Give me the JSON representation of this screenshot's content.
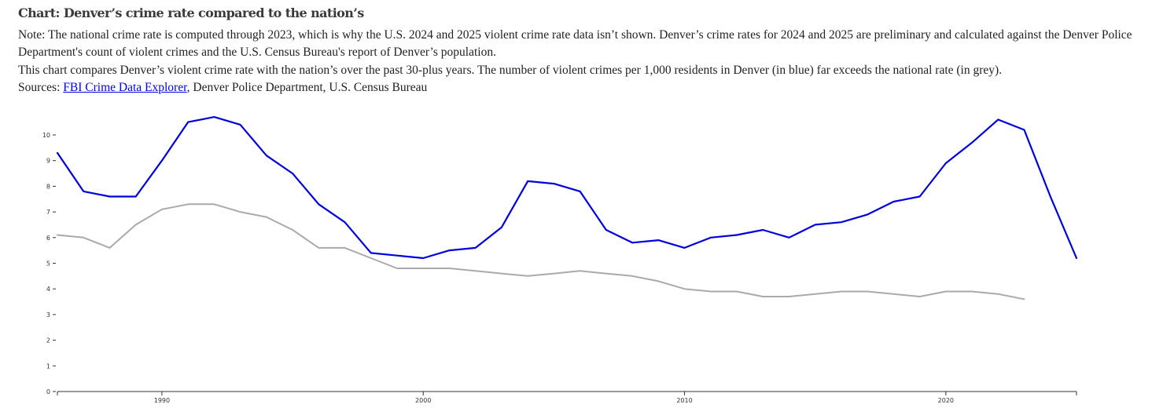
{
  "header": {
    "title": "Chart: Denver’s crime rate compared to the nation’s",
    "note": "Note: The national crime rate is computed through 2023, which is why the U.S. 2024 and 2025 violent crime rate data isn’t shown. Denver’s crime rates for 2024 and 2025 are preliminary and calculated against the Denver Police Department's count of violent crimes and the U.S. Census Bureau's report of Denver’s population.",
    "description": "This chart compares Denver’s violent crime rate with the nation’s over the past 30-plus years. The number of violent crimes per 1,000 residents in Denver (in blue) far exceeds the national rate (in grey).",
    "sources_prefix": "Sources: ",
    "sources_link": "FBI Crime Data Explorer",
    "sources_suffix": ", Denver Police Department, U.S. Census Bureau"
  },
  "chart_data": {
    "type": "line",
    "title": "",
    "xlabel": "",
    "ylabel": "",
    "xlim": [
      1986,
      2025
    ],
    "ylim": [
      0,
      10
    ],
    "x_ticks": [
      1990,
      2000,
      2010,
      2020
    ],
    "y_ticks": [
      0,
      1,
      2,
      3,
      4,
      5,
      6,
      7,
      8,
      9,
      10
    ],
    "grid": false,
    "legend": "none",
    "series": [
      {
        "color": "#0000dd",
        "x": [
          1986,
          1987,
          1988,
          1989,
          1990,
          1991,
          1992,
          1993,
          1994,
          1995,
          1996,
          1997,
          1998,
          1999,
          2000,
          2001,
          2002,
          2003,
          2004,
          2005,
          2006,
          2007,
          2008,
          2009,
          2010,
          2011,
          2012,
          2013,
          2014,
          2015,
          2016,
          2017,
          2018,
          2019,
          2020,
          2021,
          2022,
          2023,
          2024,
          2025
        ],
        "values": [
          9.3,
          7.8,
          7.6,
          7.6,
          9.0,
          10.5,
          10.7,
          10.4,
          9.2,
          8.5,
          7.3,
          6.6,
          5.4,
          5.3,
          5.2,
          5.5,
          5.6,
          6.4,
          8.2,
          8.1,
          7.8,
          6.3,
          5.8,
          5.9,
          5.6,
          6.0,
          6.1,
          6.3,
          6.0,
          6.5,
          6.6,
          6.9,
          7.4,
          7.6,
          8.9,
          9.7,
          10.6,
          10.2,
          7.6,
          5.2
        ]
      },
      {
        "color": "#aaaaaa",
        "x": [
          1986,
          1987,
          1988,
          1989,
          1990,
          1991,
          1992,
          1993,
          1994,
          1995,
          1996,
          1997,
          1998,
          1999,
          2000,
          2001,
          2002,
          2003,
          2004,
          2005,
          2006,
          2007,
          2008,
          2009,
          2010,
          2011,
          2012,
          2013,
          2014,
          2015,
          2016,
          2017,
          2018,
          2019,
          2020,
          2021,
          2022,
          2023
        ],
        "values": [
          6.1,
          6.0,
          5.6,
          6.5,
          7.1,
          7.3,
          7.3,
          7.0,
          6.8,
          6.3,
          5.6,
          5.6,
          5.2,
          4.8,
          4.8,
          4.8,
          4.7,
          4.6,
          4.5,
          4.6,
          4.7,
          4.6,
          4.5,
          4.3,
          4.0,
          3.9,
          3.9,
          3.7,
          3.7,
          3.8,
          3.9,
          3.9,
          3.8,
          3.7,
          3.9,
          3.9,
          3.8,
          3.6
        ]
      }
    ]
  }
}
